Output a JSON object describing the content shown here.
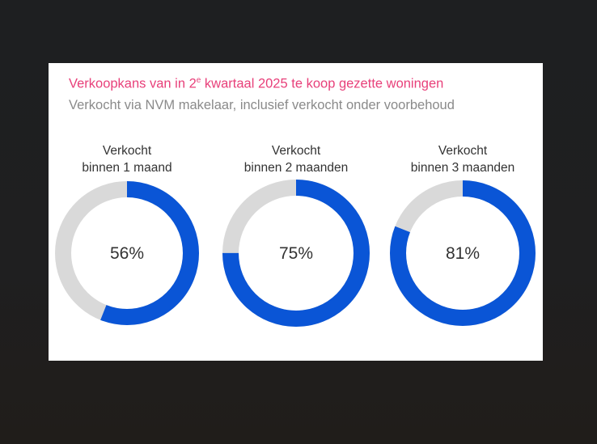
{
  "chart_data": {
    "type": "pie",
    "title_main": "Verkoopkans van in 2",
    "title_sup": "e",
    "title_rest": " kwartaal 2025 te koop gezette woningen",
    "subtitle": "Verkocht via NVM makelaar, inclusief verkocht onder voorbehoud",
    "colors": {
      "filled": "#0a55d6",
      "remaining": "#d9d9d9",
      "title": "#e8407a"
    },
    "donuts": [
      {
        "label_line1": "Verkocht",
        "label_line2": "binnen 1 maand",
        "value": 56,
        "value_label": "56%"
      },
      {
        "label_line1": "Verkocht",
        "label_line2": "binnen 2 maanden",
        "value": 75,
        "value_label": "75%"
      },
      {
        "label_line1": "Verkocht",
        "label_line2": "binnen 3 maanden",
        "value": 81,
        "value_label": "81%"
      }
    ]
  }
}
